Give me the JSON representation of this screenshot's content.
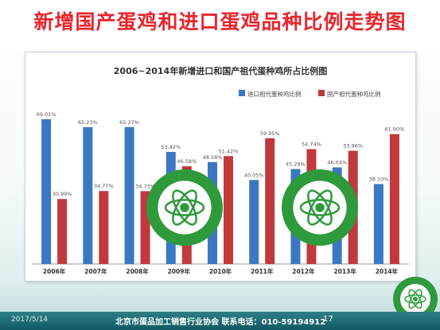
{
  "slide": {
    "title": "新增国产蛋鸡和进口蛋鸡品种比例走势图",
    "footer_date": "2017/5/14",
    "footer_org": "北京市蛋品加工销售行业协会   联系电话：010-59194912",
    "page_number": "17"
  },
  "colors": {
    "title": "#e8262e",
    "import_series": "#3c78c2",
    "domestic_series": "#c0393d",
    "footer": "#16646c",
    "logo": "#2e9a3c"
  },
  "logo": {
    "name": "北京市蛋品加工销售行业协会"
  },
  "chart_data": {
    "type": "bar",
    "title": "2006~2014年新增进口和国产祖代蛋种鸡所占比例图",
    "categories": [
      "2006年",
      "2007年",
      "2008年",
      "2009年",
      "2010年",
      "2011年",
      "2012年",
      "2013年",
      "2014年"
    ],
    "series": [
      {
        "name": "进口祖代蛋种鸡比例",
        "values": [
          69.01,
          65.23,
          65.27,
          53.42,
          48.58,
          40.05,
          45.26,
          46.04,
          38.1
        ],
        "labels": [
          "69.01%",
          "65.23%",
          "65.27%",
          "53.42%",
          "48.58%",
          "40.05%",
          "45.26%",
          "46.04%",
          "38.10%"
        ]
      },
      {
        "name": "国产祖代蛋种鸡比例",
        "values": [
          30.99,
          34.77,
          34.73,
          46.58,
          51.42,
          59.95,
          54.74,
          53.96,
          61.9
        ],
        "labels": [
          "30.99%",
          "34.77%",
          "34.73%",
          "46.58%",
          "51.42%",
          "59.95%",
          "54.74%",
          "53.96%",
          "61.90%"
        ]
      }
    ],
    "ylim": [
      0,
      72
    ],
    "grid": false,
    "legend_position": "top-right",
    "xlabel": "",
    "ylabel": ""
  }
}
